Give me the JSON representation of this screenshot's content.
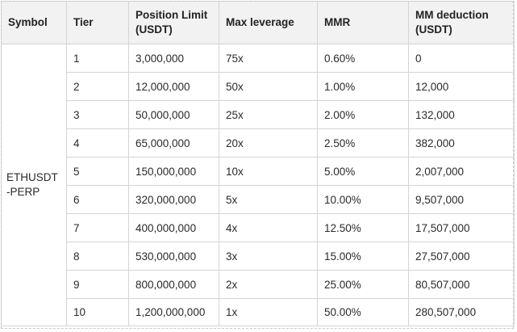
{
  "table": {
    "headers": {
      "symbol": "Symbol",
      "tier": "Tier",
      "position_limit_line1": "Position Limit",
      "position_limit_line2": "(USDT)",
      "max_leverage": "Max leverage",
      "mmr": "MMR",
      "mm_deduction_line1": "MM deduction",
      "mm_deduction_line2": "(USDT)"
    },
    "symbol_line1": "ETHUSDT",
    "symbol_line2": "-PERP",
    "rows": [
      {
        "tier": "1",
        "position_limit": "3,000,000",
        "max_leverage": "75x",
        "mmr": "0.60%",
        "mm_deduction": "0"
      },
      {
        "tier": "2",
        "position_limit": "12,000,000",
        "max_leverage": "50x",
        "mmr": "1.00%",
        "mm_deduction": "12,000"
      },
      {
        "tier": "3",
        "position_limit": "50,000,000",
        "max_leverage": "25x",
        "mmr": "2.00%",
        "mm_deduction": "132,000"
      },
      {
        "tier": "4",
        "position_limit": "65,000,000",
        "max_leverage": "20x",
        "mmr": "2.50%",
        "mm_deduction": "382,000"
      },
      {
        "tier": "5",
        "position_limit": "150,000,000",
        "max_leverage": "10x",
        "mmr": "5.00%",
        "mm_deduction": "2,007,000"
      },
      {
        "tier": "6",
        "position_limit": "320,000,000",
        "max_leverage": "5x",
        "mmr": "10.00%",
        "mm_deduction": "9,507,000"
      },
      {
        "tier": "7",
        "position_limit": "400,000,000",
        "max_leverage": "4x",
        "mmr": "12.50%",
        "mm_deduction": "17,507,000"
      },
      {
        "tier": "8",
        "position_limit": "530,000,000",
        "max_leverage": "3x",
        "mmr": "15.00%",
        "mm_deduction": "27,507,000"
      },
      {
        "tier": "9",
        "position_limit": "800,000,000",
        "max_leverage": "2x",
        "mmr": "25.00%",
        "mm_deduction": "80,507,000"
      },
      {
        "tier": "10",
        "position_limit": "1,200,000,000",
        "max_leverage": "1x",
        "mmr": "50.00%",
        "mm_deduction": "280,507,000"
      }
    ]
  }
}
